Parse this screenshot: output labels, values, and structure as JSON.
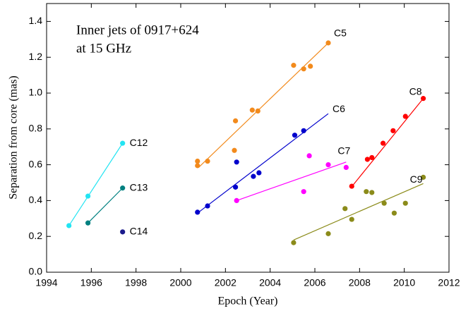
{
  "chart_data": {
    "type": "scatter",
    "annotation": [
      "Inner jets of 0917+624",
      "at 15 GHz"
    ],
    "x_label": "Epoch (Year)",
    "y_label": "Separation from core (mas)",
    "xlim": [
      1994,
      2012
    ],
    "xticks": [
      1994,
      1996,
      1998,
      2000,
      2002,
      2004,
      2006,
      2008,
      2010,
      2012
    ],
    "ylim": [
      0,
      1.5
    ],
    "yticks": [
      {
        "value": 0,
        "label": "0.0"
      },
      0.2,
      0.4,
      0.6,
      0.8,
      {
        "value": 1,
        "label": "1.0"
      },
      1.2,
      1.4
    ],
    "series": [
      {
        "name": "C12",
        "color": "#22e4f2",
        "x": [
          1995.0,
          1995.85,
          1997.4
        ],
        "values": [
          0.26,
          0.425,
          0.72
        ],
        "fit": {
          "x": [
            1995.0,
            1997.4
          ],
          "values": [
            0.26,
            0.72
          ]
        }
      },
      {
        "name": "C13",
        "color": "#008080",
        "x": [
          1995.85,
          1997.4
        ],
        "values": [
          0.275,
          0.47
        ],
        "fit": {
          "x": [
            1995.85,
            1997.4
          ],
          "values": [
            0.275,
            0.47
          ]
        }
      },
      {
        "name": "C14",
        "color": "#1a1a8c",
        "x": [
          1997.4
        ],
        "values": [
          0.225
        ]
      },
      {
        "name": "C5",
        "color": "#f28a1c",
        "x": [
          2000.75,
          2000.75,
          2001.2,
          2002.4,
          2002.45,
          2003.2,
          2003.45,
          2005.05,
          2005.5,
          2005.8,
          2006.6
        ],
        "values": [
          0.62,
          0.595,
          0.62,
          0.68,
          0.845,
          0.905,
          0.9,
          1.155,
          1.135,
          1.15,
          1.28
        ],
        "fit": {
          "x": [
            2000.8,
            2006.6
          ],
          "values": [
            0.585,
            1.28
          ]
        }
      },
      {
        "name": "C6",
        "color": "#0000cc",
        "x": [
          2000.75,
          2001.2,
          2002.45,
          2002.5,
          2003.25,
          2003.5,
          2005.1,
          2005.5
        ],
        "values": [
          0.335,
          0.37,
          0.475,
          0.615,
          0.535,
          0.555,
          0.765,
          0.79
        ],
        "fit": {
          "x": [
            2000.75,
            2006.6
          ],
          "values": [
            0.33,
            0.885
          ]
        }
      },
      {
        "name": "C7",
        "color": "#ff00ff",
        "x": [
          2002.5,
          2005.5,
          2005.75,
          2006.6,
          2007.4
        ],
        "values": [
          0.4,
          0.45,
          0.65,
          0.6,
          0.585
        ],
        "fit": {
          "x": [
            2002.5,
            2007.4
          ],
          "values": [
            0.4,
            0.615
          ]
        }
      },
      {
        "name": "C8",
        "color": "#ff0000",
        "x": [
          2007.65,
          2008.35,
          2008.55,
          2009.05,
          2009.5,
          2010.05,
          2010.85
        ],
        "values": [
          0.48,
          0.63,
          0.64,
          0.72,
          0.79,
          0.87,
          0.97
        ],
        "fit": {
          "x": [
            2007.6,
            2010.85
          ],
          "values": [
            0.47,
            0.97
          ]
        }
      },
      {
        "name": "C9",
        "color": "#8b8b1a",
        "x": [
          2005.05,
          2006.6,
          2007.35,
          2007.65,
          2008.3,
          2008.55,
          2009.1,
          2009.55,
          2010.05,
          2010.85
        ],
        "values": [
          0.165,
          0.215,
          0.355,
          0.295,
          0.45,
          0.445,
          0.385,
          0.33,
          0.385,
          0.53
        ],
        "fit": {
          "x": [
            2005.05,
            2010.85
          ],
          "values": [
            0.18,
            0.495
          ]
        }
      }
    ]
  }
}
